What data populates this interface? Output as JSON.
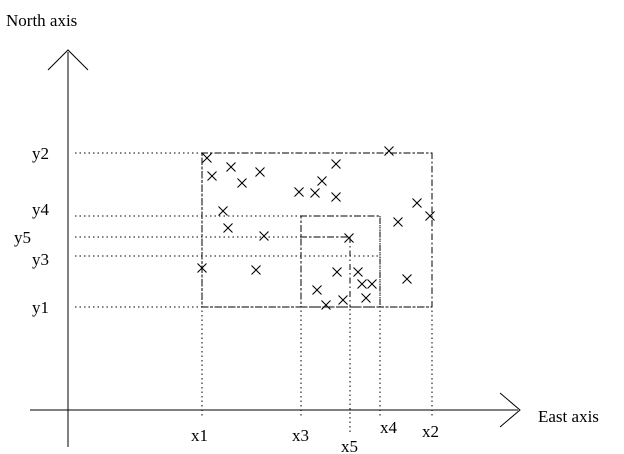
{
  "axes": {
    "north_label": "North axis",
    "east_label": "East axis"
  },
  "x_ticks": [
    "x1",
    "x3",
    "x5",
    "x4",
    "x2"
  ],
  "y_ticks": [
    "y2",
    "y4",
    "y5",
    "y3",
    "y1"
  ],
  "regions": [
    {
      "name": "outer",
      "x": [
        "x1",
        "x2"
      ],
      "y": [
        "y1",
        "y2"
      ]
    },
    {
      "name": "inner",
      "x": [
        "x3",
        "x4"
      ],
      "y": [
        "y3",
        "y4"
      ]
    },
    {
      "name": "query",
      "x": [
        "x5"
      ],
      "y": [
        "y5"
      ]
    }
  ]
}
